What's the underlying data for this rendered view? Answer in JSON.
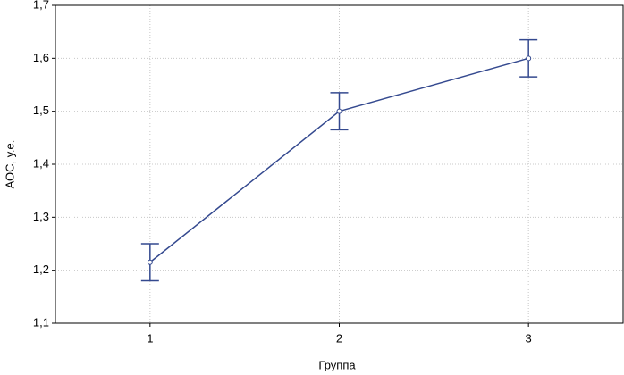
{
  "chart_data": {
    "type": "line",
    "x": [
      1,
      2,
      3
    ],
    "series": [
      {
        "color": "#34498f",
        "values": [
          1.215,
          1.5,
          1.6
        ],
        "errors": [
          0.035,
          0.035,
          0.035
        ]
      }
    ],
    "xlim": [
      0.5,
      3.5
    ],
    "xticks": [
      1,
      2,
      3
    ],
    "ylim": [
      1.1,
      1.7
    ],
    "yticks": [
      {
        "value": 1.1,
        "label": "1,1"
      },
      {
        "value": 1.2,
        "label": "1,2"
      },
      {
        "value": 1.3,
        "label": "1,3"
      },
      {
        "value": 1.4,
        "label": "1,4"
      },
      {
        "value": 1.5,
        "label": "1,5"
      },
      {
        "value": 1.6,
        "label": "1,6"
      },
      {
        "value": 1.7,
        "label": "1,7"
      }
    ],
    "xlabel": "Группа",
    "ylabel": "АОС, у.е.",
    "grid": true
  }
}
